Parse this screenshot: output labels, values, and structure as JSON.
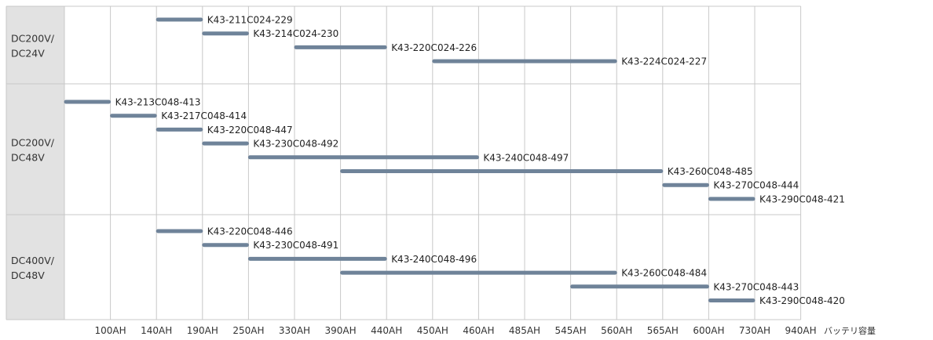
{
  "chart_data": {
    "type": "gantt",
    "x_unit_label": "バッテリ容量",
    "categories": [
      "100AH",
      "140AH",
      "190AH",
      "250AH",
      "330AH",
      "390AH",
      "440AH",
      "450AH",
      "460AH",
      "485AH",
      "545AH",
      "560AH",
      "565AH",
      "600AH",
      "730AH",
      "940AH"
    ],
    "bar_color": "#6f8399",
    "groups": [
      {
        "label_lines": [
          "DC200V/",
          "DC24V"
        ],
        "bars": [
          {
            "label": "K43-211C024-229",
            "start": 2,
            "end": 3
          },
          {
            "label": "K43-214C024-230",
            "start": 3,
            "end": 4
          },
          {
            "label": "K43-220C024-226",
            "start": 5,
            "end": 7
          },
          {
            "label": "K43-224C024-227",
            "start": 8,
            "end": 12
          }
        ]
      },
      {
        "label_lines": [
          "DC200V/",
          "DC48V"
        ],
        "bars": [
          {
            "label": "K43-213C048-413",
            "start": 0,
            "end": 1
          },
          {
            "label": "K43-217C048-414",
            "start": 1,
            "end": 2
          },
          {
            "label": "K43-220C048-447",
            "start": 2,
            "end": 3
          },
          {
            "label": "K43-230C048-492",
            "start": 3,
            "end": 4
          },
          {
            "label": "K43-240C048-497",
            "start": 4,
            "end": 9
          },
          {
            "label": "K43-260C048-485",
            "start": 6,
            "end": 13
          },
          {
            "label": "K43-270C048-444",
            "start": 13,
            "end": 14
          },
          {
            "label": "K43-290C048-421",
            "start": 14,
            "end": 15
          }
        ]
      },
      {
        "label_lines": [
          "DC400V/",
          "DC48V"
        ],
        "bars": [
          {
            "label": "K43-220C048-446",
            "start": 2,
            "end": 3
          },
          {
            "label": "K43-230C048-491",
            "start": 3,
            "end": 4
          },
          {
            "label": "K43-240C048-496",
            "start": 4,
            "end": 7
          },
          {
            "label": "K43-260C048-484",
            "start": 6,
            "end": 12
          },
          {
            "label": "K43-270C048-443",
            "start": 11,
            "end": 14
          },
          {
            "label": "K43-290C048-420",
            "start": 14,
            "end": 15
          }
        ]
      }
    ]
  }
}
